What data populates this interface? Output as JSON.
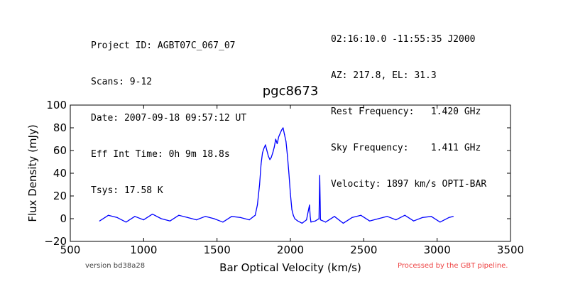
{
  "header": {
    "left": [
      "Project ID: AGBT07C_067_07",
      "Scans: 9-12",
      "Date: 2007-09-18 09:57:12 UT",
      "Eff Int Time: 0h 9m 18.8s",
      "Tsys: 17.58 K"
    ],
    "right": [
      "02:16:10.0 -11:55:35 J2000",
      "AZ: 217.8, EL: 31.3",
      "Rest Frequency:   1.420 GHz",
      "Sky Frequency:    1.411 GHz",
      "Velocity: 1897 km/s OPTI-BAR"
    ]
  },
  "footer": {
    "version": "version bd38a28",
    "processed": "Processed by the GBT pipeline.",
    "processed_color": "#ee4444"
  },
  "chart_data": {
    "type": "line",
    "title": "pgc8673",
    "xlabel": "Bar Optical Velocity (km/s)",
    "ylabel": "Flux Density (mJy)",
    "xlim": [
      500,
      3500
    ],
    "ylim": [
      -20,
      100
    ],
    "xticks": [
      500,
      1000,
      1500,
      2000,
      2500,
      3000,
      3500
    ],
    "yticks": [
      -20,
      0,
      20,
      40,
      60,
      80,
      100
    ],
    "line_color": "#0000ff",
    "grid": false,
    "series": [
      {
        "x": [
          700,
          760,
          820,
          880,
          940,
          1000,
          1060,
          1120,
          1180,
          1240,
          1300,
          1360,
          1420,
          1480,
          1540,
          1600,
          1660,
          1720,
          1760,
          1775,
          1790,
          1800,
          1810,
          1820,
          1830,
          1840,
          1850,
          1860,
          1870,
          1880,
          1890,
          1900,
          1910,
          1920,
          1930,
          1940,
          1950,
          1960,
          1970,
          1980,
          1990,
          2000,
          2010,
          2020,
          2030,
          2050,
          2080,
          2110,
          2130,
          2135,
          2140,
          2170,
          2195,
          2200,
          2205,
          2240,
          2300,
          2360,
          2420,
          2480,
          2540,
          2600,
          2660,
          2720,
          2780,
          2840,
          2900,
          2960,
          3020,
          3080,
          3110
        ],
        "y": [
          -2,
          3,
          1,
          -3,
          2,
          -1,
          4,
          0,
          -2,
          3,
          1,
          -1,
          2,
          0,
          -3,
          2,
          1,
          -1,
          3,
          12,
          30,
          48,
          58,
          62,
          65,
          60,
          55,
          52,
          54,
          58,
          63,
          70,
          66,
          72,
          75,
          78,
          80,
          74,
          68,
          55,
          40,
          22,
          8,
          3,
          0,
          -2,
          -4,
          -1,
          12,
          2,
          -3,
          -2,
          0,
          38,
          -1,
          -3,
          2,
          -4,
          1,
          3,
          -2,
          0,
          2,
          -1,
          3,
          -2,
          1,
          2,
          -3,
          1,
          2
        ]
      }
    ]
  }
}
